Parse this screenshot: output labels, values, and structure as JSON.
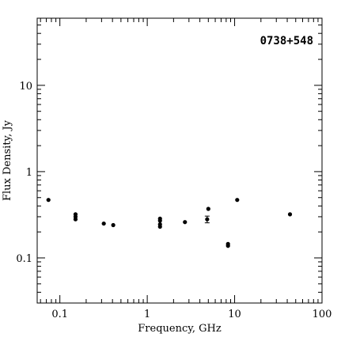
{
  "chart_data": {
    "type": "scatter",
    "title": "0738+548",
    "xlabel": "Frequency, GHz",
    "ylabel": "Flux Density, Jy",
    "x_scale": "log",
    "y_scale": "log",
    "xlim": [
      0.055,
      100
    ],
    "ylim": [
      0.03,
      60
    ],
    "x_ticks": [
      {
        "v": 0.1,
        "label": "0.1"
      },
      {
        "v": 1,
        "label": "1"
      },
      {
        "v": 10,
        "label": "10"
      },
      {
        "v": 100,
        "label": "100"
      }
    ],
    "y_ticks": [
      {
        "v": 0.1,
        "label": "0.1"
      },
      {
        "v": 1,
        "label": "1"
      },
      {
        "v": 10,
        "label": "10"
      }
    ],
    "grid": false,
    "legend": "none",
    "points": [
      {
        "x": 0.074,
        "y": 0.47
      },
      {
        "x": 0.151,
        "y": 0.32
      },
      {
        "x": 0.151,
        "y": 0.3
      },
      {
        "x": 0.151,
        "y": 0.28
      },
      {
        "x": 0.318,
        "y": 0.25
      },
      {
        "x": 0.408,
        "y": 0.24
      },
      {
        "x": 1.4,
        "y": 0.285
      },
      {
        "x": 1.4,
        "y": 0.27
      },
      {
        "x": 1.4,
        "y": 0.245
      },
      {
        "x": 1.4,
        "y": 0.23
      },
      {
        "x": 2.7,
        "y": 0.26
      },
      {
        "x": 4.85,
        "y": 0.28,
        "yerr": 0.025
      },
      {
        "x": 5.0,
        "y": 0.37
      },
      {
        "x": 8.4,
        "y": 0.145
      },
      {
        "x": 8.4,
        "y": 0.138
      },
      {
        "x": 10.7,
        "y": 0.47
      },
      {
        "x": 43.0,
        "y": 0.32
      }
    ]
  }
}
